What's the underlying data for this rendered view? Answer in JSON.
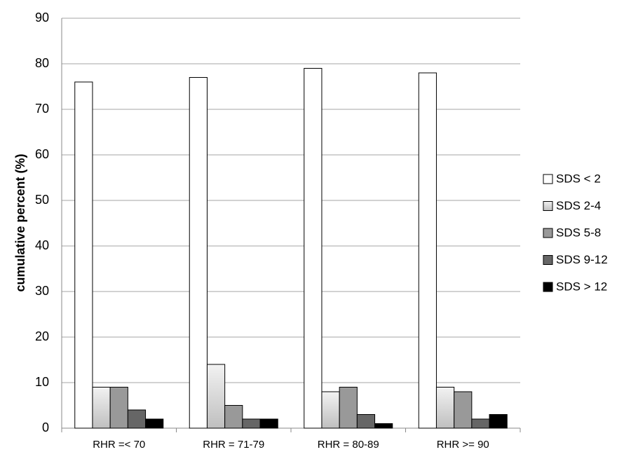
{
  "chart_data": {
    "type": "bar",
    "y_label": "cumulative percent (%)",
    "categories": [
      "RHR =< 70",
      "RHR = 71-79",
      "RHR = 80-89",
      "RHR >= 90"
    ],
    "series": [
      {
        "name": "SDS < 2",
        "color": "#ffffff",
        "values": [
          76,
          77,
          79,
          78
        ]
      },
      {
        "name": "SDS 2-4",
        "color": "#d9d9d9",
        "values": [
          9,
          14,
          8,
          9
        ]
      },
      {
        "name": "SDS 5-8",
        "color": "#999999",
        "values": [
          9,
          5,
          9,
          8
        ]
      },
      {
        "name": "SDS 9-12",
        "color": "#666666",
        "values": [
          4,
          2,
          3,
          2
        ]
      },
      {
        "name": "SDS > 12",
        "color": "#000000",
        "values": [
          2,
          2,
          1,
          3
        ]
      }
    ],
    "ylim": [
      0,
      90
    ],
    "yticks": [
      0,
      10,
      20,
      30,
      40,
      50,
      60,
      70,
      80,
      90
    ],
    "grid": true,
    "legend": "right"
  }
}
